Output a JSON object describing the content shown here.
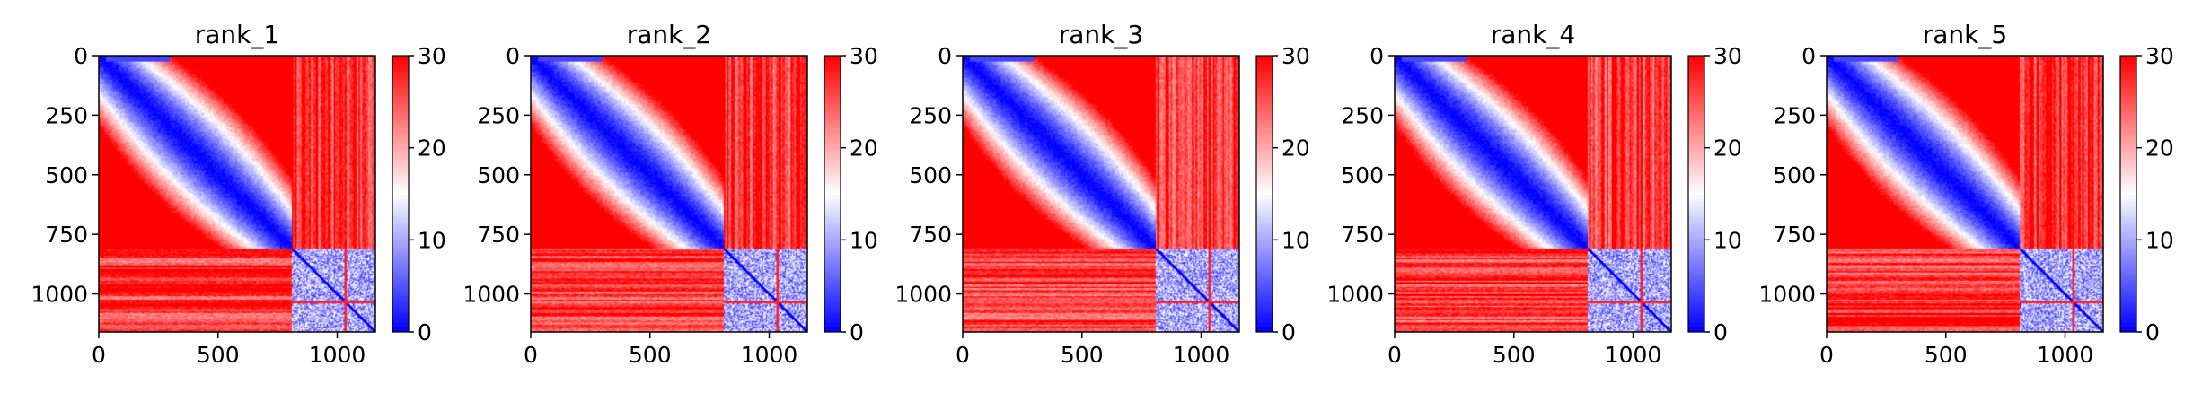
{
  "chart_data": [
    {
      "type": "heatmap",
      "title": "rank_1",
      "x_ticks": [
        0,
        500,
        1000
      ],
      "y_ticks": [
        0,
        250,
        500,
        750,
        1000
      ],
      "colorbar_ticks": [
        0,
        10,
        20,
        30
      ],
      "xlim": [
        0,
        1160
      ],
      "ylim": [
        1160,
        0
      ],
      "color_range": [
        0,
        30
      ],
      "colormap": [
        "#0000ff",
        "#ffffff",
        "#ff0000"
      ],
      "structure": {
        "block_boundary": 810,
        "upper_block": "distance-like gradient, low on diagonal rising to high",
        "lower_block": "low values with noise",
        "off_diagonal": "high"
      }
    },
    {
      "type": "heatmap",
      "title": "rank_2",
      "x_ticks": [
        0,
        500,
        1000
      ],
      "y_ticks": [
        0,
        250,
        500,
        750,
        1000
      ],
      "colorbar_ticks": [
        0,
        10,
        20,
        30
      ],
      "xlim": [
        0,
        1160
      ],
      "ylim": [
        1160,
        0
      ],
      "color_range": [
        0,
        30
      ],
      "colormap": [
        "#0000ff",
        "#ffffff",
        "#ff0000"
      ],
      "structure": {
        "block_boundary": 810
      }
    },
    {
      "type": "heatmap",
      "title": "rank_3",
      "x_ticks": [
        0,
        500,
        1000
      ],
      "y_ticks": [
        0,
        250,
        500,
        750,
        1000
      ],
      "colorbar_ticks": [
        0,
        10,
        20,
        30
      ],
      "xlim": [
        0,
        1160
      ],
      "ylim": [
        1160,
        0
      ],
      "color_range": [
        0,
        30
      ],
      "colormap": [
        "#0000ff",
        "#ffffff",
        "#ff0000"
      ],
      "structure": {
        "block_boundary": 810
      }
    },
    {
      "type": "heatmap",
      "title": "rank_4",
      "x_ticks": [
        0,
        500,
        1000
      ],
      "y_ticks": [
        0,
        250,
        500,
        750,
        1000
      ],
      "colorbar_ticks": [
        0,
        10,
        20,
        30
      ],
      "xlim": [
        0,
        1160
      ],
      "ylim": [
        1160,
        0
      ],
      "color_range": [
        0,
        30
      ],
      "colormap": [
        "#0000ff",
        "#ffffff",
        "#ff0000"
      ],
      "structure": {
        "block_boundary": 810
      }
    },
    {
      "type": "heatmap",
      "title": "rank_5",
      "x_ticks": [
        0,
        500,
        1000
      ],
      "y_ticks": [
        0,
        250,
        500,
        750,
        1000
      ],
      "colorbar_ticks": [
        0,
        10,
        20,
        30
      ],
      "xlim": [
        0,
        1160
      ],
      "ylim": [
        1160,
        0
      ],
      "color_range": [
        0,
        30
      ],
      "colormap": [
        "#0000ff",
        "#ffffff",
        "#ff0000"
      ],
      "structure": {
        "block_boundary": 810
      }
    }
  ]
}
